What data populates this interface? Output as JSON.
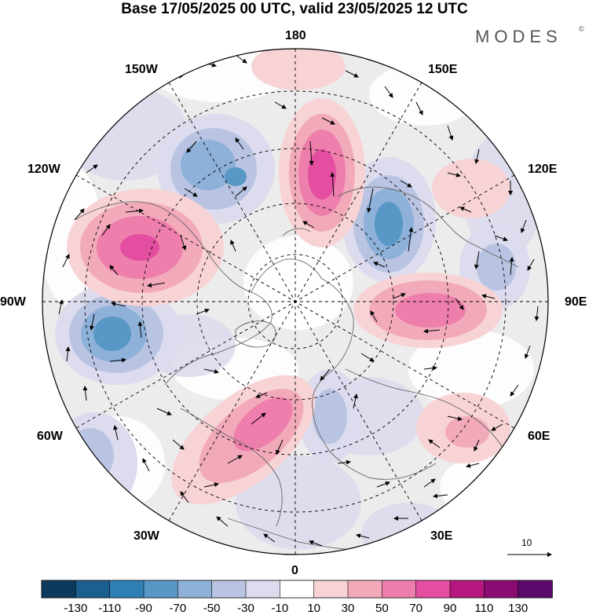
{
  "title": "Base 17/05/2025 00 UTC, valid 23/05/2025 12 UTC",
  "brand": "MODES",
  "brand_mark": "©",
  "longitude_labels": {
    "top": "180",
    "upper_left": "150W",
    "upper_right": "150E",
    "left_upper": "120W",
    "right_upper": "120E",
    "left": "90W",
    "right": "90E",
    "left_lower": "60W",
    "right_lower": "60E",
    "lower_left": "30W",
    "lower_right": "30E",
    "bottom": "0"
  },
  "reference_vector": {
    "value": "10"
  },
  "colorbar": {
    "labels": [
      "-130",
      "-110",
      "-90",
      "-70",
      "-50",
      "-30",
      "-10",
      "10",
      "30",
      "50",
      "70",
      "90",
      "110",
      "130"
    ],
    "colors": [
      "#0b3a5e",
      "#1c5f8e",
      "#2f7fb5",
      "#5798c6",
      "#8eb1d9",
      "#b9c4e2",
      "#dcdcee",
      "#ffffff",
      "#f7d3d6",
      "#f2aabb",
      "#ee7eac",
      "#e34ea0",
      "#b6177f",
      "#8a0c73",
      "#5b0a6b"
    ]
  },
  "map": {
    "projection": "north polar stereographic",
    "shading": "anomaly",
    "background_color": "#ededed",
    "centers": [
      {
        "kind": "positive",
        "value": 90
      },
      {
        "kind": "positive",
        "value": 90
      },
      {
        "kind": "positive",
        "value": 70
      },
      {
        "kind": "positive",
        "value": 70
      },
      {
        "kind": "positive",
        "value": 30
      },
      {
        "kind": "positive",
        "value": 30
      },
      {
        "kind": "negative",
        "value": -70
      },
      {
        "kind": "negative",
        "value": -70
      },
      {
        "kind": "negative",
        "value": -50
      },
      {
        "kind": "negative",
        "value": -30
      }
    ]
  }
}
